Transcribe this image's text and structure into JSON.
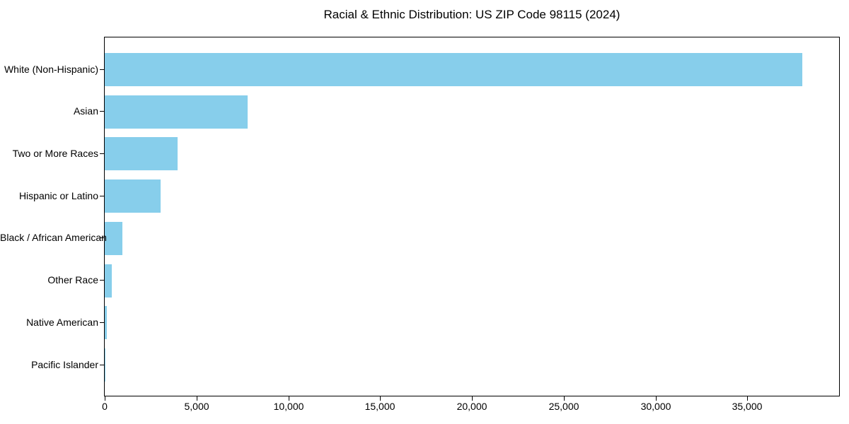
{
  "chart_data": {
    "type": "bar",
    "orientation": "horizontal",
    "title": "Racial & Ethnic Distribution: US ZIP Code 98115 (2024)",
    "categories": [
      "White (Non-Hispanic)",
      "Asian",
      "Two or More Races",
      "Hispanic or Latino",
      "Black / African American",
      "Other Race",
      "Native American",
      "Pacific Islander"
    ],
    "values": [
      38000,
      7800,
      3950,
      3050,
      960,
      385,
      110,
      25
    ],
    "xlabel": "",
    "ylabel": "",
    "xlim": [
      0,
      40000
    ],
    "xticks": [
      0,
      5000,
      10000,
      15000,
      20000,
      25000,
      30000,
      35000
    ],
    "xtick_labels": [
      "0",
      "5,000",
      "10,000",
      "15,000",
      "20,000",
      "25,000",
      "30,000",
      "35,000"
    ],
    "bar_color": "#87CEEB",
    "grid": false,
    "legend": "none"
  }
}
